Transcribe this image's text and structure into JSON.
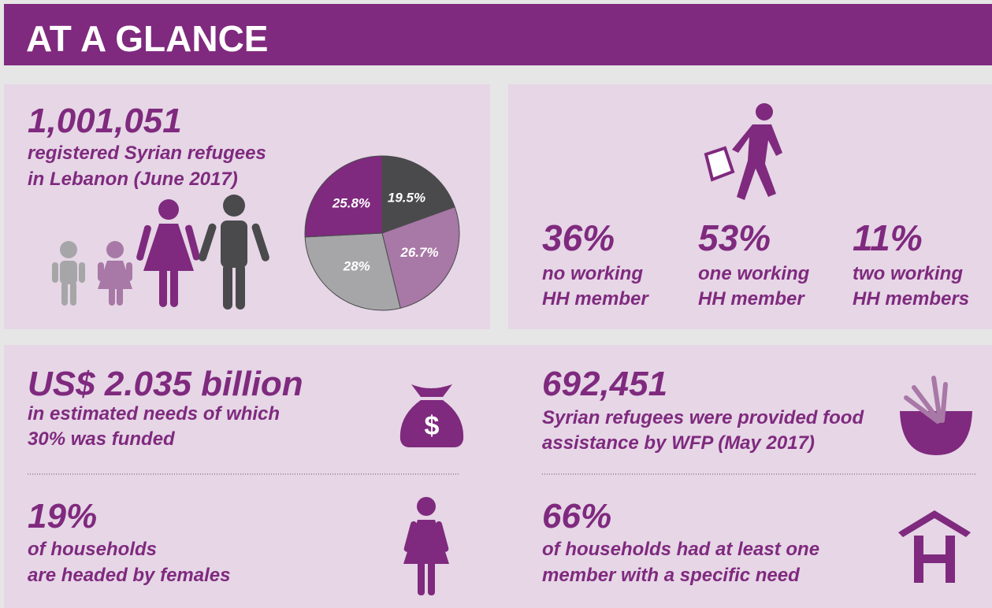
{
  "header": {
    "title": "AT A GLANCE"
  },
  "refugees": {
    "number": "1,001,051",
    "caption": [
      "registered Syrian refugees",
      "in Lebanon (June 2017)"
    ],
    "pie": {
      "type": "pie",
      "values": [
        19.5,
        26.7,
        28,
        25.8
      ],
      "value_labels": [
        "19.5%",
        "26.7%",
        "28%",
        "25.8%"
      ],
      "colors": [
        "#4a4a4c",
        "#a878a6",
        "#a6a6a8",
        "#7f2a7e"
      ]
    }
  },
  "work": [
    {
      "pct": "36%",
      "label": [
        "no working",
        "HH member"
      ]
    },
    {
      "pct": "53%",
      "label": [
        "one working",
        "HH member"
      ]
    },
    {
      "pct": "11%",
      "label": [
        "two working",
        "HH members"
      ]
    }
  ],
  "needs": {
    "number": "US$ 2.035 billion",
    "caption": [
      "in estimated needs of which",
      "30% was funded"
    ]
  },
  "food": {
    "number": "692,451",
    "caption": [
      "Syrian refugees were provided food",
      "assistance by WFP (May 2017)"
    ]
  },
  "females": {
    "number": "19%",
    "caption": [
      "of households",
      "are headed by females"
    ]
  },
  "needs_specific": {
    "number": "66%",
    "caption": [
      "of households had at least one",
      "member with a specific need"
    ]
  }
}
